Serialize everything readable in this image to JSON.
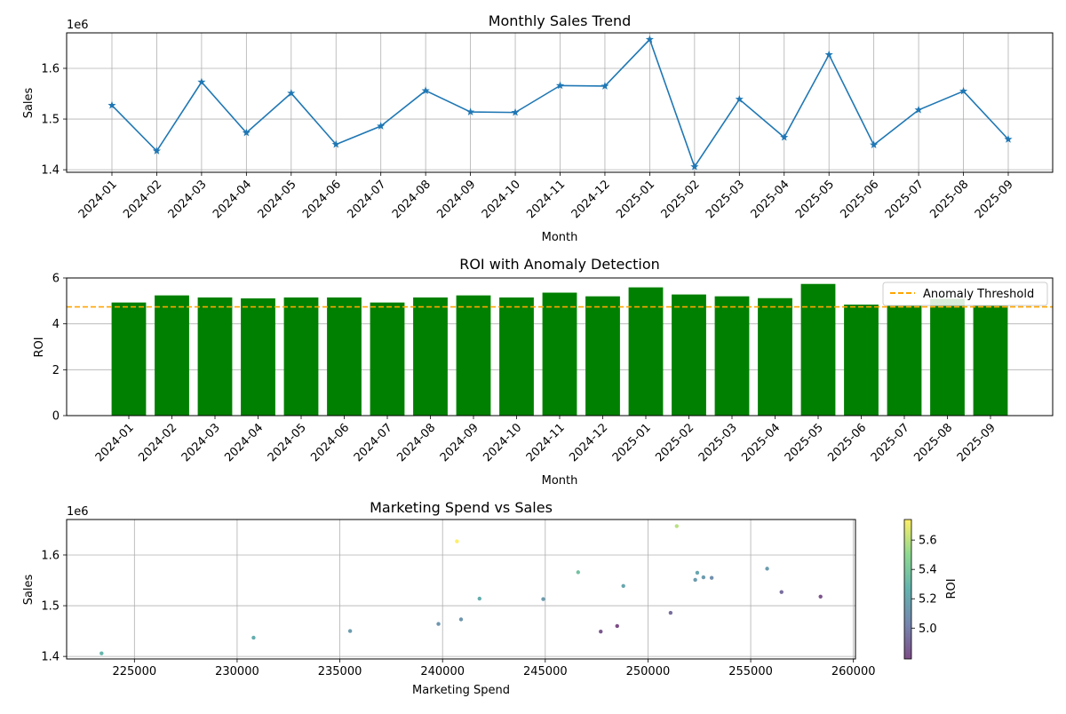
{
  "chart_data": [
    {
      "type": "line",
      "title": "Monthly Sales Trend",
      "xlabel": "Month",
      "ylabel": "Sales",
      "y_offset_label": "1e6",
      "grid": true,
      "marker": "star",
      "color": "#1f77b4",
      "ylim": [
        1.395,
        1.67
      ],
      "yticks": [
        1.4,
        1.5,
        1.6
      ],
      "categories": [
        "2024-01",
        "2024-02",
        "2024-03",
        "2024-04",
        "2024-05",
        "2024-06",
        "2024-07",
        "2024-08",
        "2024-09",
        "2024-10",
        "2024-11",
        "2024-12",
        "2025-01",
        "2025-02",
        "2025-03",
        "2025-04",
        "2025-05",
        "2025-06",
        "2025-07",
        "2025-08",
        "2025-09"
      ],
      "values": [
        1.527,
        1.437,
        1.573,
        1.473,
        1.551,
        1.45,
        1.486,
        1.556,
        1.514,
        1.513,
        1.566,
        1.565,
        1.657,
        1.406,
        1.539,
        1.464,
        1.627,
        1.449,
        1.518,
        1.555,
        1.46
      ]
    },
    {
      "type": "bar",
      "title": "ROI with Anomaly Detection",
      "xlabel": "Month",
      "ylabel": "ROI",
      "grid": true,
      "bar_color": "#008000",
      "ylim": [
        0,
        6
      ],
      "yticks": [
        0,
        2,
        4,
        6
      ],
      "categories": [
        "2024-01",
        "2024-02",
        "2024-03",
        "2024-04",
        "2024-05",
        "2024-06",
        "2024-07",
        "2024-08",
        "2024-09",
        "2024-10",
        "2024-11",
        "2024-12",
        "2025-01",
        "2025-02",
        "2025-03",
        "2025-04",
        "2025-05",
        "2025-06",
        "2025-07",
        "2025-08",
        "2025-09"
      ],
      "values": [
        4.93,
        5.24,
        5.15,
        5.11,
        5.15,
        5.15,
        4.93,
        5.15,
        5.24,
        5.15,
        5.36,
        5.2,
        5.59,
        5.28,
        5.2,
        5.12,
        5.74,
        4.84,
        4.81,
        5.09,
        4.79
      ],
      "threshold": {
        "label": "Anomaly Threshold",
        "value": 4.74,
        "color": "#ffa500"
      },
      "legend": "top-right"
    },
    {
      "type": "scatter",
      "title": "Marketing Spend vs Sales",
      "xlabel": "Marketing Spend",
      "ylabel": "Sales",
      "y_offset_label": "1e6",
      "grid": true,
      "xlim": [
        221700,
        260100
      ],
      "ylim": [
        1.395,
        1.67
      ],
      "xticks": [
        225000,
        230000,
        235000,
        240000,
        245000,
        250000,
        255000,
        260000
      ],
      "yticks": [
        1.4,
        1.5,
        1.6
      ],
      "colorbar": {
        "label": "ROI",
        "ticks": [
          5.0,
          5.2,
          5.4,
          5.6
        ],
        "range": [
          4.79,
          5.74
        ],
        "colormap": "viridis"
      },
      "points": [
        {
          "x": 256500,
          "y": 1.527,
          "c": 4.93
        },
        {
          "x": 230800,
          "y": 1.437,
          "c": 5.24
        },
        {
          "x": 255800,
          "y": 1.573,
          "c": 5.15
        },
        {
          "x": 240900,
          "y": 1.473,
          "c": 5.11
        },
        {
          "x": 252300,
          "y": 1.551,
          "c": 5.15
        },
        {
          "x": 235500,
          "y": 1.45,
          "c": 5.15
        },
        {
          "x": 251100,
          "y": 1.486,
          "c": 4.93
        },
        {
          "x": 252700,
          "y": 1.556,
          "c": 5.15
        },
        {
          "x": 241800,
          "y": 1.514,
          "c": 5.24
        },
        {
          "x": 244900,
          "y": 1.513,
          "c": 5.15
        },
        {
          "x": 246600,
          "y": 1.566,
          "c": 5.36
        },
        {
          "x": 252400,
          "y": 1.565,
          "c": 5.2
        },
        {
          "x": 251400,
          "y": 1.657,
          "c": 5.59
        },
        {
          "x": 223400,
          "y": 1.406,
          "c": 5.28
        },
        {
          "x": 248800,
          "y": 1.539,
          "c": 5.2
        },
        {
          "x": 239800,
          "y": 1.464,
          "c": 5.12
        },
        {
          "x": 240700,
          "y": 1.627,
          "c": 5.74
        },
        {
          "x": 247700,
          "y": 1.449,
          "c": 4.84
        },
        {
          "x": 258400,
          "y": 1.518,
          "c": 4.81
        },
        {
          "x": 253100,
          "y": 1.555,
          "c": 5.09
        },
        {
          "x": 248500,
          "y": 1.46,
          "c": 4.79
        }
      ]
    }
  ]
}
